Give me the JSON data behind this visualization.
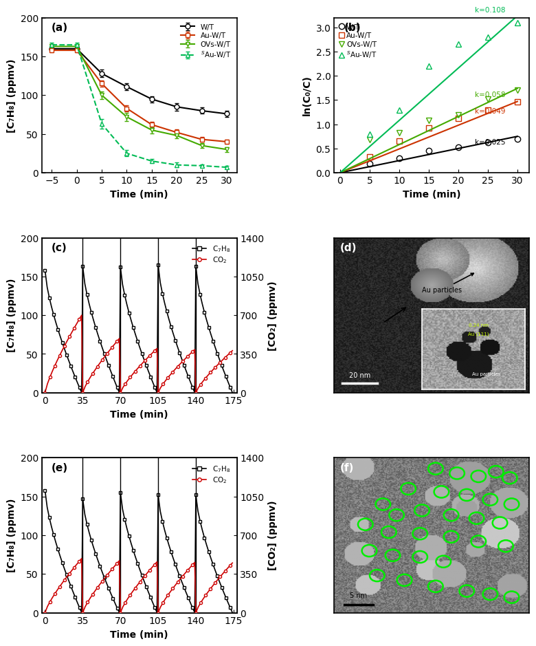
{
  "panel_a": {
    "title": "(a)",
    "xlabel": "Time (min)",
    "ylabel": "[C₇H₈] (ppmv)",
    "xlim": [
      -7,
      32
    ],
    "ylim": [
      0,
      200
    ],
    "xticks": [
      -5,
      0,
      5,
      10,
      15,
      20,
      25,
      30
    ],
    "yticks": [
      0,
      50,
      100,
      150,
      200
    ],
    "series": {
      "W/T": {
        "color": "#000000",
        "marker": "o",
        "linestyle": "-",
        "x": [
          -5,
          0,
          5,
          10,
          15,
          20,
          25,
          30
        ],
        "y": [
          160,
          160,
          128,
          111,
          95,
          85,
          80,
          76
        ],
        "yerr": [
          3,
          3,
          5,
          4,
          4,
          5,
          4,
          4
        ]
      },
      "Au-W/T": {
        "color": "#cc3300",
        "marker": "s",
        "linestyle": "-",
        "x": [
          -5,
          0,
          5,
          10,
          15,
          20,
          25,
          30
        ],
        "y": [
          158,
          158,
          115,
          83,
          62,
          52,
          43,
          40
        ],
        "yerr": [
          3,
          3,
          4,
          4,
          4,
          4,
          3,
          3
        ]
      },
      "OVs-W/T": {
        "color": "#44aa00",
        "marker": "v",
        "linestyle": "-",
        "x": [
          -5,
          0,
          5,
          10,
          15,
          20,
          25,
          30
        ],
        "y": [
          163,
          163,
          100,
          72,
          55,
          48,
          35,
          30
        ],
        "yerr": [
          3,
          3,
          5,
          5,
          4,
          4,
          3,
          3
        ]
      },
      "sAu-W/T": {
        "color": "#00bb55",
        "marker": "^",
        "linestyle": "--",
        "x": [
          -5,
          0,
          5,
          10,
          15,
          20,
          25,
          30
        ],
        "y": [
          165,
          165,
          63,
          25,
          15,
          10,
          9,
          7
        ],
        "yerr": [
          3,
          3,
          6,
          4,
          3,
          3,
          2,
          2
        ]
      }
    }
  },
  "panel_b": {
    "title": "(b)",
    "xlabel": "Time (min)",
    "ylabel": "ln(C₀/C)",
    "xlim": [
      -1,
      32
    ],
    "ylim": [
      0.0,
      3.2
    ],
    "xticks": [
      0,
      5,
      10,
      15,
      20,
      25,
      30
    ],
    "yticks": [
      0.0,
      0.5,
      1.0,
      1.5,
      2.0,
      2.5,
      3.0
    ],
    "series": {
      "W/T": {
        "color": "#000000",
        "marker": "o",
        "k": 0.025,
        "x": [
          5,
          10,
          15,
          20,
          25,
          30
        ],
        "y": [
          0.18,
          0.3,
          0.45,
          0.53,
          0.62,
          0.7
        ]
      },
      "Au-W/T": {
        "color": "#cc3300",
        "marker": "s",
        "k": 0.049,
        "x": [
          5,
          10,
          15,
          20,
          25,
          30
        ],
        "y": [
          0.32,
          0.65,
          0.92,
          1.12,
          1.3,
          1.47
        ]
      },
      "OVs-W/T": {
        "color": "#44aa00",
        "marker": "v",
        "k": 0.058,
        "x": [
          5,
          10,
          15,
          20,
          25,
          30
        ],
        "y": [
          0.68,
          0.82,
          1.08,
          1.2,
          1.52,
          1.7
        ]
      },
      "sAu-W/T": {
        "color": "#00bb55",
        "marker": "^",
        "k": 0.108,
        "x": [
          5,
          10,
          15,
          20,
          25,
          30
        ],
        "y": [
          0.8,
          1.3,
          2.2,
          2.65,
          2.8,
          3.1
        ]
      }
    }
  },
  "panel_c": {
    "title": "(c)",
    "xlabel": "Time (min)",
    "ylabel_left": "[C₇H₈] (ppmv)",
    "ylabel_right": "[CO₂] (ppmv)",
    "xlim": [
      -3,
      178
    ],
    "ylim_left": [
      0,
      200
    ],
    "ylim_right": [
      0,
      1400
    ],
    "xticks": [
      0,
      35,
      70,
      105,
      140,
      175
    ],
    "yticks_left": [
      0,
      50,
      100,
      150,
      200
    ],
    "yticks_right": [
      0,
      350,
      700,
      1050,
      1400
    ],
    "vlines": [
      35,
      70,
      105,
      140
    ]
  },
  "panel_e": {
    "title": "(e)",
    "xlabel": "Time (min)",
    "ylabel_left": "[C₇H₈] (ppmv)",
    "ylabel_right": "[CO₂] (ppmv)",
    "xlim": [
      -3,
      178
    ],
    "ylim_left": [
      0,
      200
    ],
    "ylim_right": [
      0,
      1400
    ],
    "xticks": [
      0,
      35,
      70,
      105,
      140,
      175
    ],
    "yticks_left": [
      0,
      50,
      100,
      150,
      200
    ],
    "yticks_right": [
      0,
      350,
      700,
      1050,
      1400
    ],
    "vlines": [
      35,
      70,
      105,
      140
    ]
  },
  "panel_d": {
    "title": "(d)"
  },
  "panel_f": {
    "title": "(f)",
    "circles": [
      [
        0.52,
        0.93
      ],
      [
        0.63,
        0.9
      ],
      [
        0.74,
        0.88
      ],
      [
        0.83,
        0.91
      ],
      [
        0.9,
        0.87
      ],
      [
        0.38,
        0.8
      ],
      [
        0.55,
        0.78
      ],
      [
        0.68,
        0.76
      ],
      [
        0.8,
        0.73
      ],
      [
        0.91,
        0.7
      ],
      [
        0.25,
        0.7
      ],
      [
        0.32,
        0.63
      ],
      [
        0.45,
        0.66
      ],
      [
        0.6,
        0.63
      ],
      [
        0.73,
        0.61
      ],
      [
        0.85,
        0.58
      ],
      [
        0.16,
        0.57
      ],
      [
        0.28,
        0.52
      ],
      [
        0.44,
        0.51
      ],
      [
        0.6,
        0.49
      ],
      [
        0.74,
        0.46
      ],
      [
        0.88,
        0.43
      ],
      [
        0.18,
        0.4
      ],
      [
        0.3,
        0.37
      ],
      [
        0.44,
        0.36
      ],
      [
        0.56,
        0.33
      ],
      [
        0.22,
        0.24
      ],
      [
        0.36,
        0.21
      ],
      [
        0.52,
        0.17
      ],
      [
        0.68,
        0.14
      ],
      [
        0.8,
        0.12
      ],
      [
        0.91,
        0.1
      ]
    ]
  }
}
